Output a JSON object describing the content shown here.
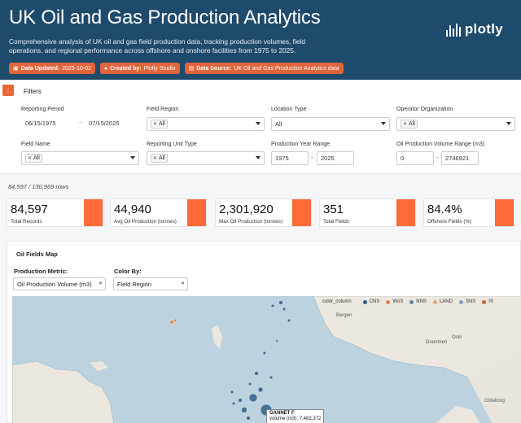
{
  "header": {
    "title": "UK Oil and Gas Production Analytics",
    "subtitle": "Comprehensive analysis of UK oil and gas field production data, tracking production volumes, field operations, and regional performance across offshore and onshore facilities from 1975 to 2025.",
    "badges": [
      {
        "label": "Data Updated:",
        "value": "2025-10-02",
        "icon": "calendar-icon"
      },
      {
        "label": "Created by:",
        "value": "Plotly Studio",
        "icon": "user-icon"
      },
      {
        "label": "Data Source:",
        "value": "UK Oil and Gas Production Analytics data",
        "icon": "database-icon"
      }
    ],
    "logo_text": "plotly"
  },
  "filters": {
    "title": "Filters",
    "reporting_period": {
      "label": "Reporting Period",
      "start": "06/15/1975",
      "end": "07/15/2025"
    },
    "field_region": {
      "label": "Field Region",
      "chip": "All"
    },
    "location_type": {
      "label": "Location Type",
      "value": "All"
    },
    "operator_org": {
      "label": "Operator Organization",
      "chip": "All"
    },
    "field_name": {
      "label": "Field Name",
      "chip": "All"
    },
    "reporting_unit": {
      "label": "Reporting Unit Type",
      "chip": "All"
    },
    "year_range": {
      "label": "Production Year Range",
      "min": "1975",
      "max": "2025"
    },
    "volume_range": {
      "label": "Oil Production Volume Range (m3)",
      "min": "0",
      "max": "2746921"
    },
    "separator": "-"
  },
  "row_count": "84,597 / 130,969 rows",
  "kpis": [
    {
      "value": "84,597",
      "label": "Total Records"
    },
    {
      "value": "44,940",
      "label": "Avg Oil Production (tonnes)"
    },
    {
      "value": "2,301,920",
      "label": "Max Oil Production (tonnes)"
    },
    {
      "value": "351",
      "label": "Total Fields"
    },
    {
      "value": "84.4%",
      "label": "Offshore Fields (%)"
    }
  ],
  "map": {
    "title": "Oil Fields Map",
    "production_metric": {
      "label": "Production Metric:",
      "value": "Oil Production Volume (m3)"
    },
    "color_by": {
      "label": "Color By:",
      "value": "Field Region"
    },
    "legend_title": "color_column",
    "legend": [
      {
        "name": "CNS",
        "color": "#2f5f8a"
      },
      {
        "name": "WoS",
        "color": "#e0864a"
      },
      {
        "name": "NNS",
        "color": "#5e88ad"
      },
      {
        "name": "LAND",
        "color": "#e8a26a"
      },
      {
        "name": "SNS",
        "color": "#7d9db8"
      },
      {
        "name": "IS",
        "color": "#c8643c"
      }
    ],
    "place_labels": [
      "Bergen",
      "Oslo",
      "Drammen",
      "Göteborg"
    ],
    "tooltip": {
      "name": "GANNET F",
      "detail": "volume (m3): 7,482,372"
    }
  },
  "colors": {
    "header_bg": "#1e4a6b",
    "accent": "#ff6a38",
    "badge": "#e0643c"
  }
}
